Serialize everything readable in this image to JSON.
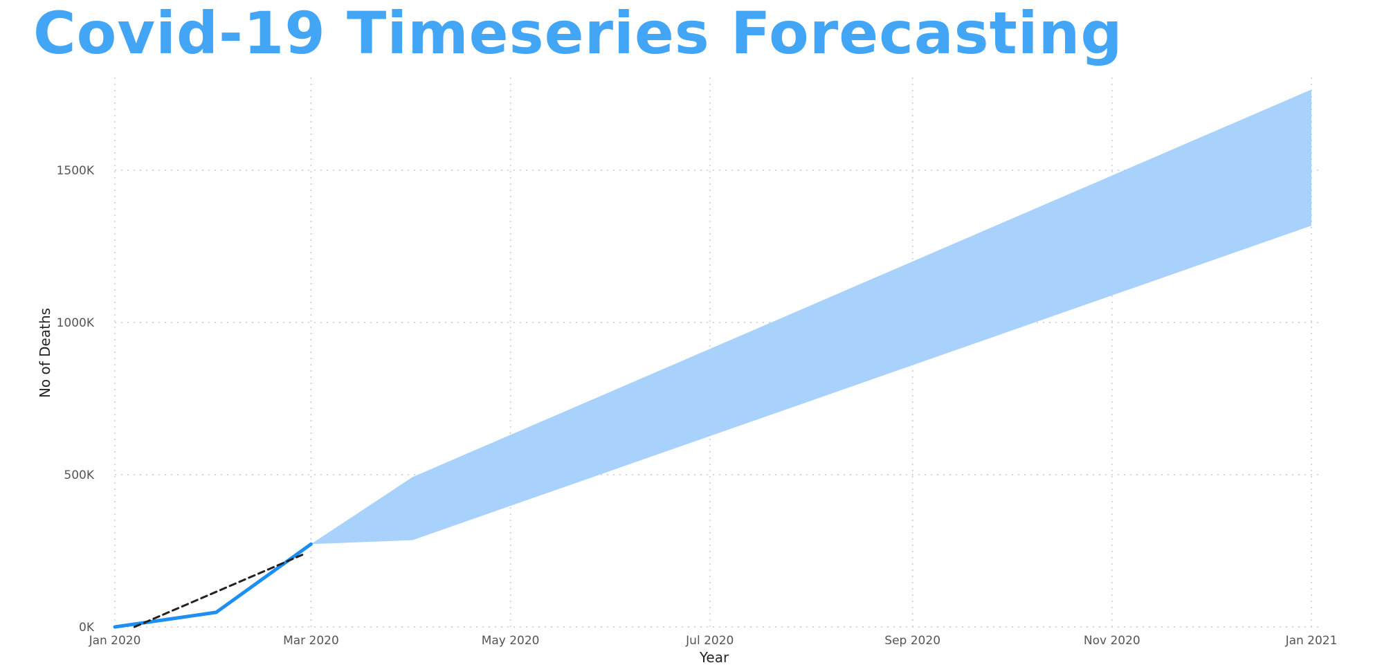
{
  "title": "Covid-19 Timeseries Forecasting",
  "colors": {
    "title": "#42a5f5",
    "actual_line": "#1e8ff2",
    "forecast_band": "#a8d2fb",
    "trend_line": "#222222",
    "gridline": "#c8c8c8"
  },
  "chart_data": {
    "type": "line",
    "title": "Covid-19 Timeseries Forecasting",
    "xlabel": "Year",
    "ylabel": "No of Deaths",
    "x_ticks": [
      "Jan 2020",
      "Mar 2020",
      "May 2020",
      "Jul 2020",
      "Sep 2020",
      "Nov 2020",
      "Jan 2021"
    ],
    "x_range": [
      "2020-01-01",
      "2021-01-01"
    ],
    "y_ticks": [
      {
        "value": 0,
        "label": "0K"
      },
      {
        "value": 500000,
        "label": "500K"
      },
      {
        "value": 1000000,
        "label": "1000K"
      },
      {
        "value": 1500000,
        "label": "1500K"
      }
    ],
    "ylim": [
      0,
      1750000
    ],
    "grid": true,
    "line_style": "dotted gridlines",
    "series": [
      {
        "kind": "actual",
        "style": "solid",
        "points": [
          {
            "x": "2020-01-01",
            "y": 0
          },
          {
            "x": "2020-02-01",
            "y": 48000
          },
          {
            "x": "2020-03-01",
            "y": 272000
          }
        ]
      },
      {
        "kind": "trend",
        "style": "dashed",
        "points": [
          {
            "x": "2020-01-07",
            "y": 0
          },
          {
            "x": "2020-02-28",
            "y": 240000
          }
        ]
      },
      {
        "kind": "forecast-band",
        "style": "filled",
        "upper": [
          {
            "x": "2020-03-01",
            "y": 272000
          },
          {
            "x": "2020-04-01",
            "y": 492000
          },
          {
            "x": "2021-01-01",
            "y": 1765000
          }
        ],
        "lower": [
          {
            "x": "2020-03-01",
            "y": 272000
          },
          {
            "x": "2020-04-01",
            "y": 285000
          },
          {
            "x": "2021-01-01",
            "y": 1318000
          }
        ]
      }
    ]
  }
}
